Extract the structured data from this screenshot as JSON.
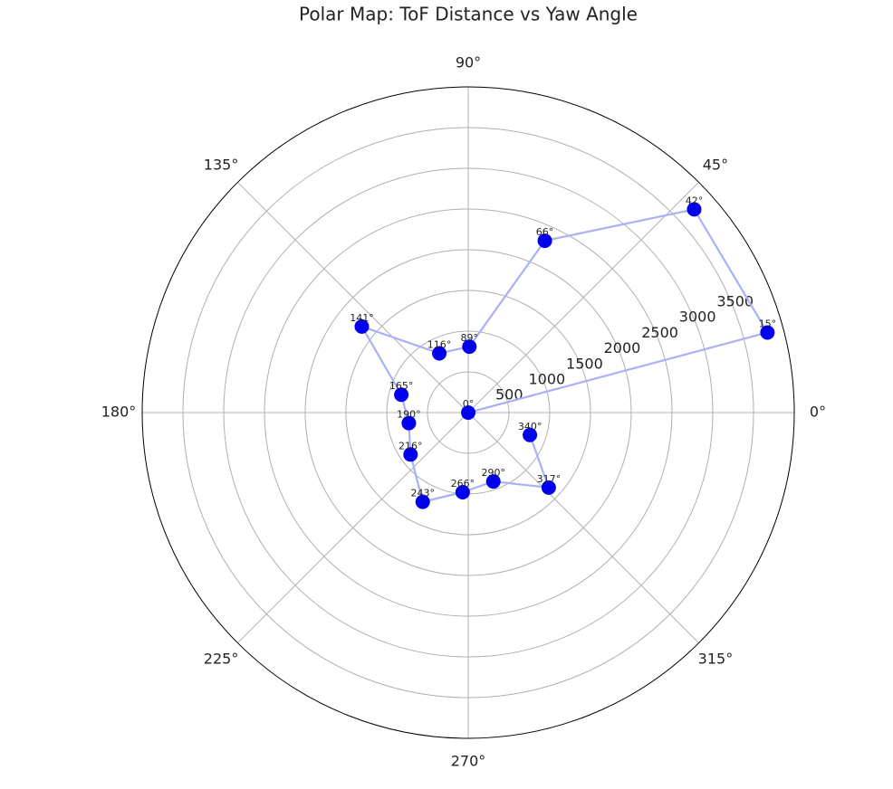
{
  "chart_data": {
    "type": "polar",
    "title": "Polar Map: ToF Distance vs Yaw Angle",
    "x": [
      0,
      15,
      42,
      66,
      89,
      116,
      141,
      165,
      190,
      216,
      243,
      266,
      290,
      317,
      340
    ],
    "point_labels": [
      "0°",
      "15°",
      "42°",
      "66°",
      "89°",
      "116°",
      "141°",
      "165°",
      "190°",
      "216°",
      "243°",
      "266°",
      "290°",
      "317°",
      "340°"
    ],
    "series": [
      {
        "line_color": "#aab0f5",
        "color": "#0000ee",
        "values": [
          0,
          3800,
          3730,
          2310,
          810,
          810,
          1680,
          850,
          740,
          875,
          1230,
          980,
          900,
          1350,
          805
        ]
      }
    ],
    "ylim": [
      0,
      4000
    ],
    "yticks": [
      500,
      1000,
      1500,
      2000,
      2500,
      3000,
      3500
    ],
    "xticks": [
      {
        "value": 0,
        "label": "0°"
      },
      {
        "value": 45,
        "label": "45°"
      },
      {
        "value": 90,
        "label": "90°"
      },
      {
        "value": 135,
        "label": "135°"
      },
      {
        "value": 180,
        "label": "180°"
      },
      {
        "value": 225,
        "label": "225°"
      },
      {
        "value": 270,
        "label": "270°"
      },
      {
        "value": 315,
        "label": "315°"
      }
    ],
    "grid": true
  }
}
